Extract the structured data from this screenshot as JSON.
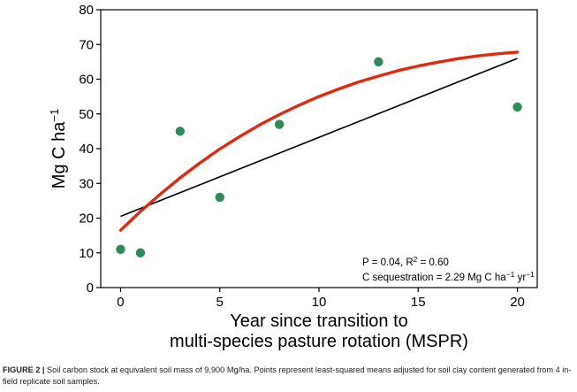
{
  "chart_data": {
    "type": "scatter",
    "x": [
      0,
      1,
      3,
      5,
      8,
      13,
      20
    ],
    "y": [
      11,
      10,
      45,
      26,
      47,
      65,
      52
    ],
    "xlim": [
      -1,
      21
    ],
    "ylim": [
      0,
      80
    ],
    "xticks": [
      0,
      5,
      10,
      15,
      20
    ],
    "yticks": [
      0,
      10,
      20,
      30,
      40,
      50,
      60,
      70,
      80
    ],
    "xlabel_line1": "Year since transition to",
    "xlabel_line2": "multi-species pasture rotation (MSPR)",
    "ylabel_main": "Mg C ha",
    "ylabel_sup": "−1",
    "grid": false,
    "point_color": "#2e8b57",
    "linear_fit": {
      "x": [
        0,
        20
      ],
      "y": [
        20.5,
        66
      ],
      "color": "#000000"
    },
    "curve_fit": {
      "x": [
        0,
        1,
        2,
        3,
        4,
        5,
        6,
        7,
        8,
        9,
        10,
        11,
        12,
        13,
        14,
        15,
        16,
        17,
        18,
        19,
        20
      ],
      "y": [
        16.5,
        21.9,
        26.9,
        31.6,
        35.9,
        39.9,
        43.5,
        46.8,
        49.8,
        52.5,
        55.0,
        57.2,
        59.2,
        60.9,
        62.5,
        63.8,
        64.9,
        65.9,
        66.7,
        67.3,
        67.8
      ],
      "color": "#dd2a10"
    },
    "annotation_line1_prefix": "P = 0.04, R",
    "annotation_line1_sup": "2",
    "annotation_line1_suffix": " = 0.60",
    "annotation_line2_prefix": "C sequestration = 2.29 Mg C ha",
    "annotation_line2_sup1": "−1",
    "annotation_line2_mid": " yr",
    "annotation_line2_sup2": "−1"
  },
  "caption": {
    "label": "FIGURE 2 |",
    "text": " Soil carbon stock at equivalent soil mass of 9,900 Mg/ha. Points represent least-squared means adjusted for soil clay content generated from 4 in-field replicate soil samples."
  }
}
